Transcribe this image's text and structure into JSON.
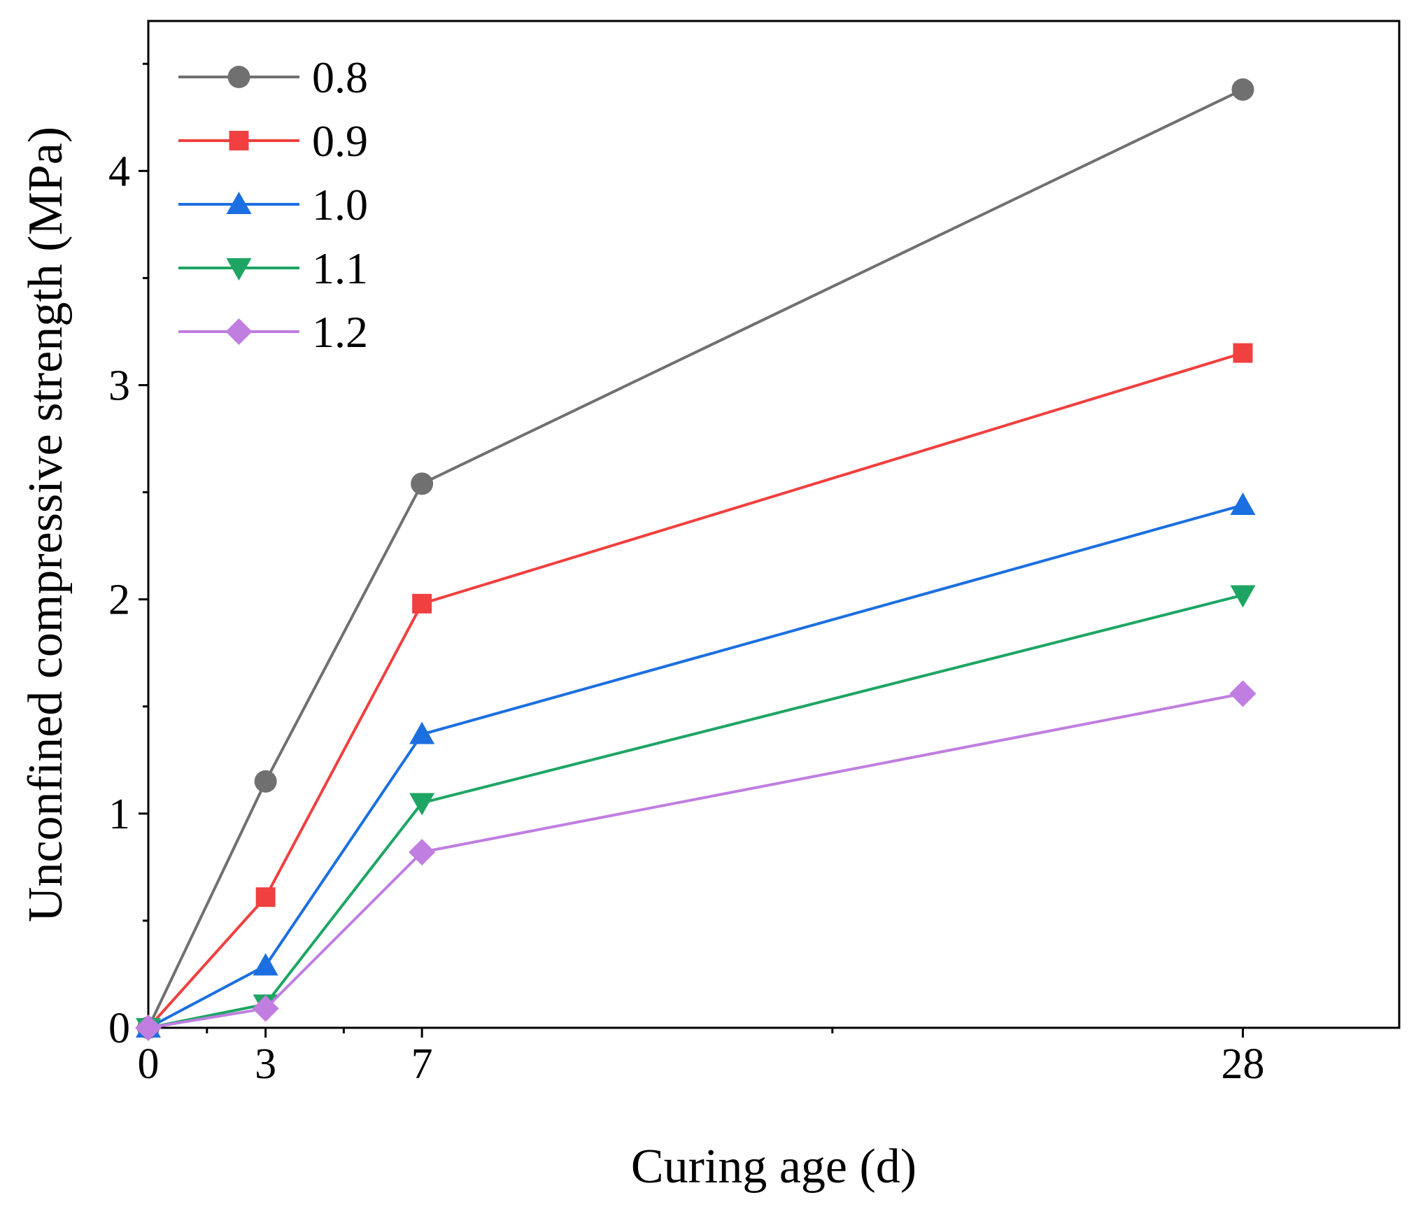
{
  "chart_data": {
    "type": "line",
    "title": "",
    "xlabel": "Curing age (d)",
    "ylabel": "Unconfined compressive strength (MPa)",
    "xlim": [
      0,
      32
    ],
    "ylim": [
      0,
      4.7
    ],
    "xticks": [
      0,
      3,
      7,
      28
    ],
    "xtick_labels": [
      "0",
      "3",
      "7",
      "28"
    ],
    "x_minor_ticks": [
      1.5,
      5,
      17.5
    ],
    "yticks": [
      0,
      1,
      2,
      3,
      4
    ],
    "ytick_labels": [
      "0",
      "1",
      "2",
      "3",
      "4"
    ],
    "y_minor_ticks": [
      0.5,
      1.5,
      2.5,
      3.5,
      4.5
    ],
    "grid": false,
    "legend_position": "top-left",
    "x": [
      0,
      3,
      7,
      28
    ],
    "series": [
      {
        "name": "0.8",
        "values": [
          0,
          1.15,
          2.54,
          4.38
        ],
        "color": "#707070",
        "marker": "circle"
      },
      {
        "name": "0.9",
        "values": [
          0,
          0.61,
          1.98,
          3.15
        ],
        "color": "#f04040",
        "marker": "square"
      },
      {
        "name": "1.0",
        "values": [
          0,
          0.29,
          1.37,
          2.44
        ],
        "color": "#1c6fe0",
        "marker": "triangle-up"
      },
      {
        "name": "1.1",
        "values": [
          0,
          0.11,
          1.05,
          2.02
        ],
        "color": "#1ea564",
        "marker": "triangle-down"
      },
      {
        "name": "1.2",
        "values": [
          0,
          0.09,
          0.82,
          1.56
        ],
        "color": "#c07ee0",
        "marker": "diamond"
      }
    ]
  }
}
